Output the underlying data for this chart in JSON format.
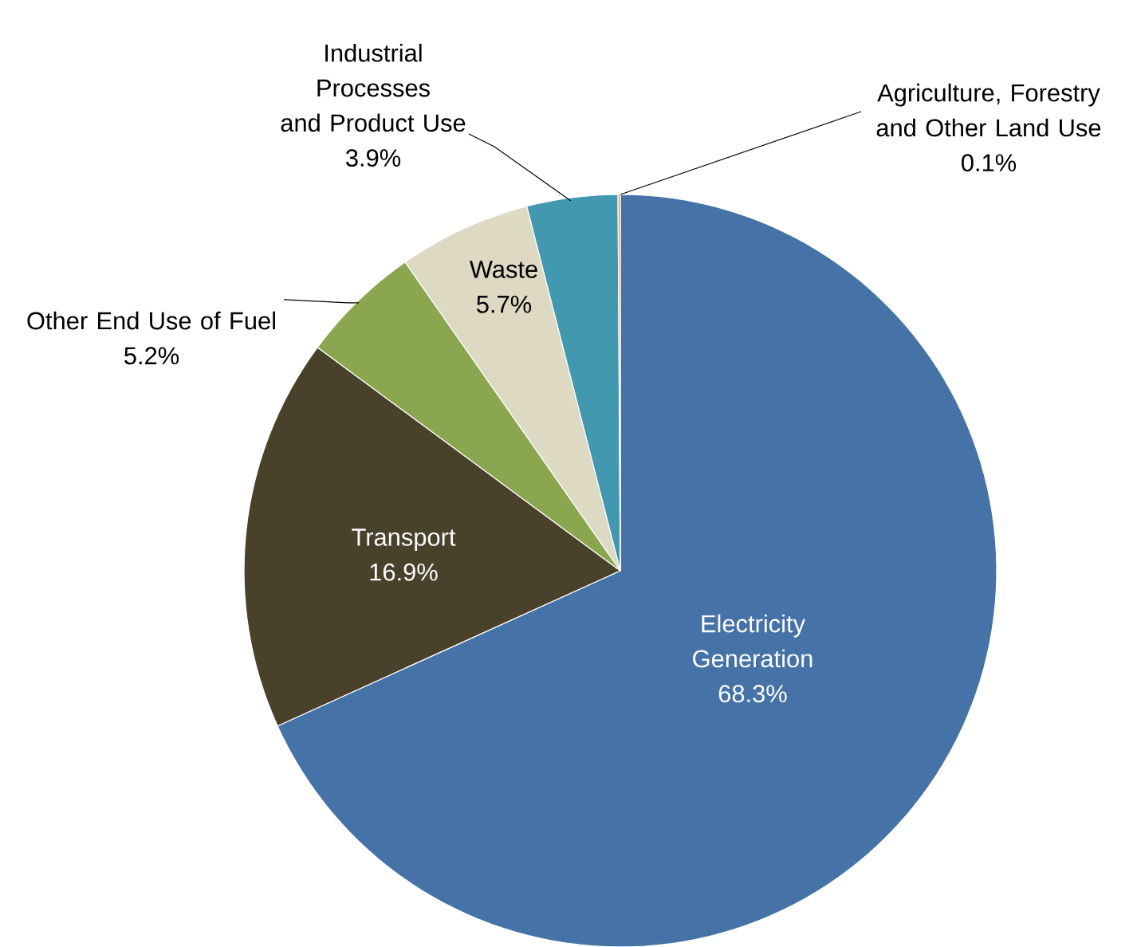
{
  "chart_data": {
    "type": "pie",
    "categories": [
      "Electricity Generation",
      "Transport",
      "Other End Use of Fuel",
      "Waste",
      "Industrial Processes and Product Use",
      "Agriculture, Forestry and Other Land Use"
    ],
    "values": [
      68.3,
      16.9,
      5.2,
      5.7,
      3.9,
      0.1
    ],
    "value_labels": [
      "68.3%",
      "16.9%",
      "5.2%",
      "5.7%",
      "3.9%",
      "0.1%"
    ],
    "colors": [
      "#4572a7",
      "#4a412a",
      "#8aa64f",
      "#ddd9c3",
      "#4198af",
      "#f79646"
    ]
  }
}
